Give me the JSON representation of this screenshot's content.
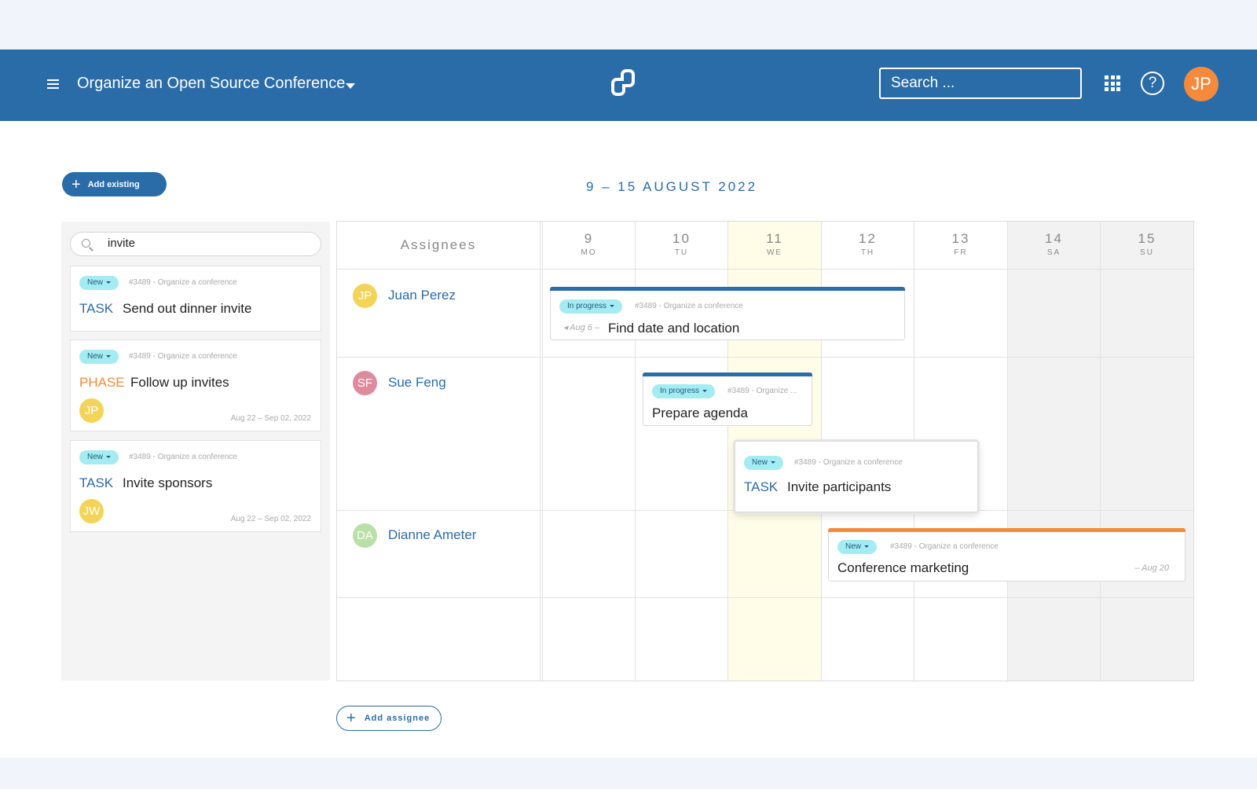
{
  "header": {
    "project_title": "Organize an Open Source Conference",
    "search_placeholder": "Search ...",
    "help_label": "?",
    "user_initials": "JP"
  },
  "toolbar": {
    "add_existing_label": "Add existing",
    "date_range": "9 – 15 AUGUST 2022"
  },
  "sidebar": {
    "search_value": "invite",
    "results": [
      {
        "status": "New",
        "ref": "#3489 - Organize a conference",
        "type": "TASK",
        "title": "Send out dinner invite"
      },
      {
        "status": "New",
        "ref": "#3489 - Organize a conference",
        "type": "PHASE",
        "title": "Follow up invites",
        "assignee_initials": "JP",
        "dates": "Aug 22 – Sep 02, 2022"
      },
      {
        "status": "New",
        "ref": "#3489 - Organize a conference",
        "type": "TASK",
        "title": "Invite sponsors",
        "assignee_initials": "JW",
        "dates": "Aug 22 – Sep 02, 2022"
      }
    ]
  },
  "calendar": {
    "assignees_label": "Assignees",
    "days": [
      {
        "num": "9",
        "wd": "MO"
      },
      {
        "num": "10",
        "wd": "TU"
      },
      {
        "num": "11",
        "wd": "WE"
      },
      {
        "num": "12",
        "wd": "TH"
      },
      {
        "num": "13",
        "wd": "FR"
      },
      {
        "num": "14",
        "wd": "SA"
      },
      {
        "num": "15",
        "wd": "SU"
      }
    ],
    "assignees": [
      {
        "initials": "JP",
        "name": "Juan Perez",
        "color": "#f4d458"
      },
      {
        "initials": "SF",
        "name": "Sue Feng",
        "color": "#e08aa0"
      },
      {
        "initials": "DA",
        "name": "Dianne Ameter",
        "color": "#b8e0a8"
      }
    ],
    "cards": {
      "find_date": {
        "status": "In progress",
        "ref": "#3489 - Organize a conference",
        "prev_date": "Aug 6 –",
        "title": "Find date and location"
      },
      "prepare_agenda": {
        "status": "In progress",
        "ref": "#3489 - Organize ...",
        "title": "Prepare agenda"
      },
      "invite_participants": {
        "status": "New",
        "ref": "#3489 - Organize a conference",
        "type": "TASK",
        "title": "Invite participants"
      },
      "conference_marketing": {
        "status": "New",
        "ref": "#3489 - Organize a conference",
        "title": "Conference marketing",
        "end_date": "– Aug 20"
      }
    }
  },
  "footer": {
    "add_assignee_label": "Add assignee"
  },
  "colors": {
    "brand_blue": "#2a6ca8",
    "accent_orange": "#f68a3c",
    "today_highlight": "#fffde8",
    "weekend": "#f2f2f2",
    "badge_cyan": "#a5ecf2"
  }
}
